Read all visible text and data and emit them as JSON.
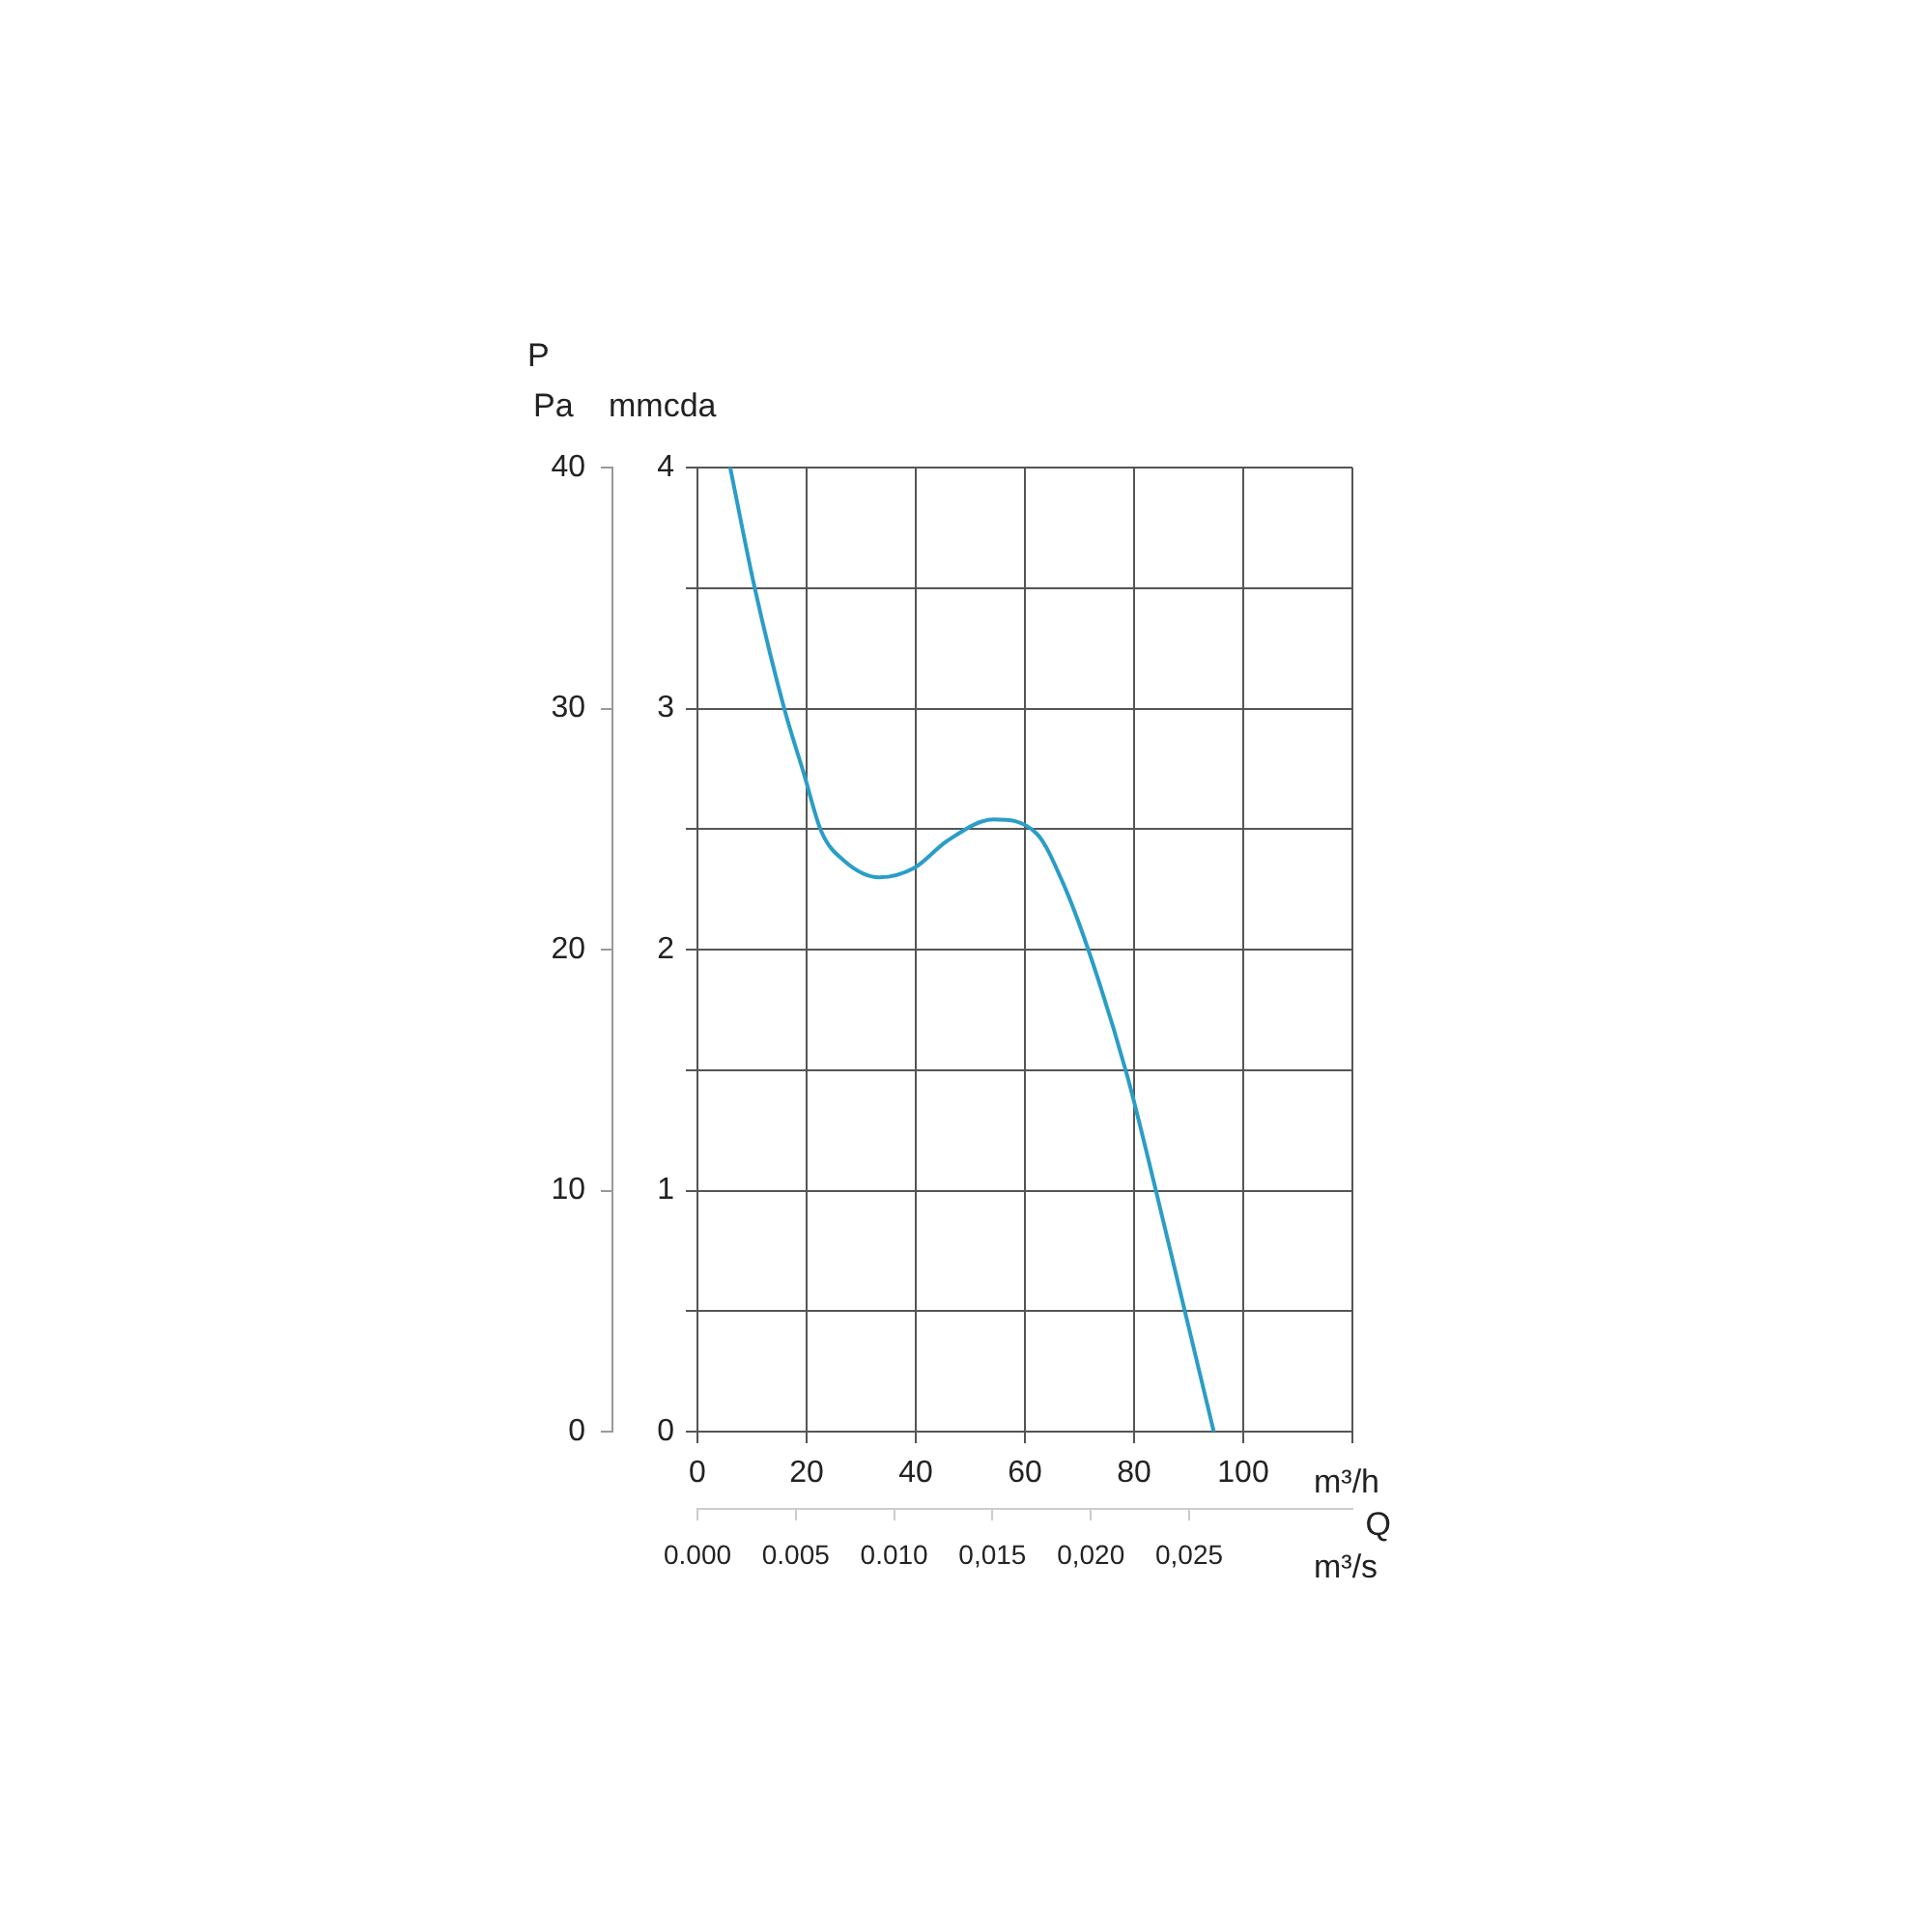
{
  "chart_data": {
    "type": "line",
    "ylabel": "mmcda",
    "y2label": "Pa",
    "xlabel": "m³/h",
    "x2label": "m³/s",
    "annotations": [
      "P",
      "Q"
    ],
    "series": [
      {
        "color": "#2a9dc8",
        "x": [
          6.0,
          10.5,
          15.9,
          19.5,
          22.7,
          26.8,
          33.3,
          39.8,
          45.7,
          54.3,
          62.2,
          66.9,
          71.6,
          78.7,
          84.0,
          89.3,
          94.6
        ],
        "values": [
          4.0,
          3.5,
          3.0,
          2.73,
          2.49,
          2.37,
          2.3,
          2.34,
          2.45,
          2.54,
          2.48,
          2.28,
          2.0,
          1.48,
          1.0,
          0.5,
          0
        ]
      }
    ],
    "xlim": [
      0,
      120
    ],
    "xticks": [
      0,
      20,
      40,
      60,
      80,
      100,
      {
        "value": 120,
        "label": null
      }
    ],
    "ylim": [
      0,
      4
    ],
    "yticks": [
      0,
      {
        "value": 0.5,
        "label": null
      },
      1,
      {
        "value": 1.5,
        "label": null
      },
      2,
      {
        "value": 2.5,
        "label": null
      },
      3,
      {
        "value": 3.5,
        "label": null
      },
      4
    ],
    "y2lim": [
      0,
      40
    ],
    "y2ticks": [
      0,
      10,
      20,
      30,
      40
    ],
    "x2lim": [
      0,
      0.0333
    ],
    "x2ticks": [
      {
        "value": 0,
        "label": "0.000"
      },
      {
        "value": 0.005,
        "label": "0.005"
      },
      {
        "value": 0.01,
        "label": "0.010"
      },
      {
        "value": 0.015,
        "label": "0,015"
      },
      {
        "value": 0.02,
        "label": "0,020"
      },
      {
        "value": 0.025,
        "label": "0,025"
      }
    ],
    "grid": true,
    "legend": false,
    "marker": "none",
    "line_style": "solid"
  }
}
